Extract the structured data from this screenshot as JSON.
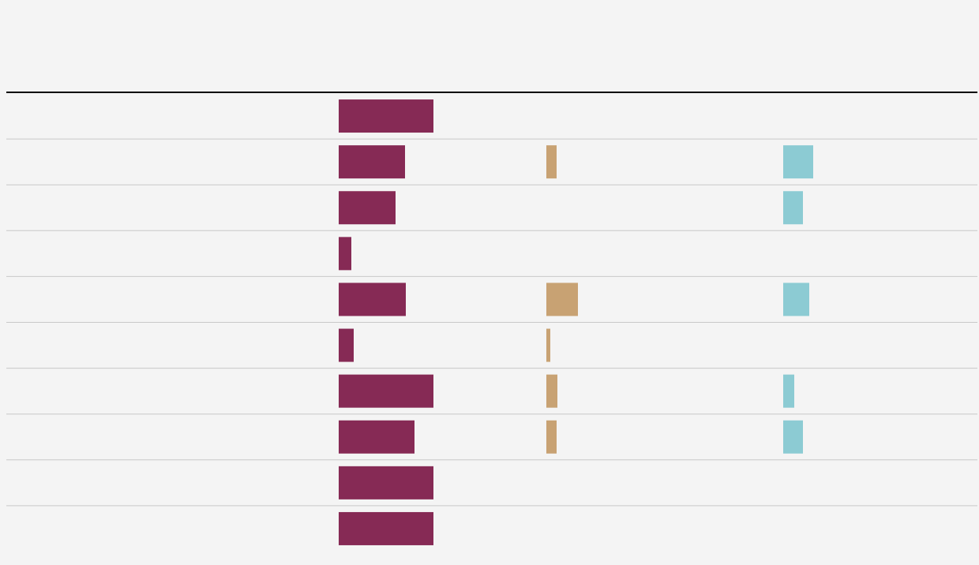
{
  "table": {
    "columns": [
      {
        "color": "#862a55"
      },
      {
        "color": "#c8a273"
      },
      {
        "color": "#8ccbd3"
      }
    ],
    "rows": [
      [
        120,
        null,
        null
      ],
      [
        84,
        13,
        38
      ],
      [
        72,
        null,
        25
      ],
      [
        16,
        null,
        null
      ],
      [
        85,
        40,
        33
      ],
      [
        19,
        5,
        null
      ],
      [
        120,
        14,
        14
      ],
      [
        96,
        13,
        25
      ],
      [
        120,
        null,
        null
      ],
      [
        120,
        null,
        null
      ]
    ]
  }
}
